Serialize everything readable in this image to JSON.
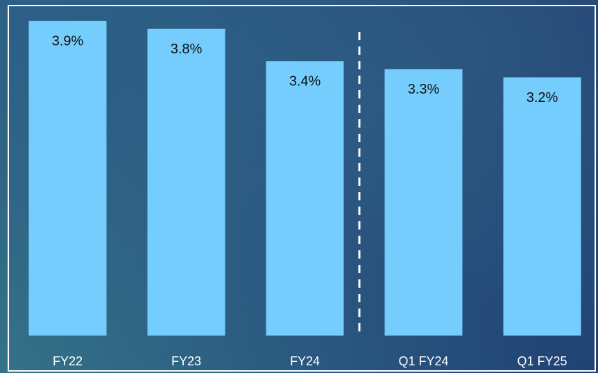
{
  "chart_data": {
    "type": "bar",
    "categories": [
      "FY22",
      "FY23",
      "FY24",
      "Q1 FY24",
      "Q1 FY25"
    ],
    "values": [
      3.9,
      3.8,
      3.4,
      3.3,
      3.2
    ],
    "value_labels": [
      "3.9%",
      "3.8%",
      "3.4%",
      "3.3%",
      "3.2%"
    ],
    "color": "#74cdfd"
  }
}
